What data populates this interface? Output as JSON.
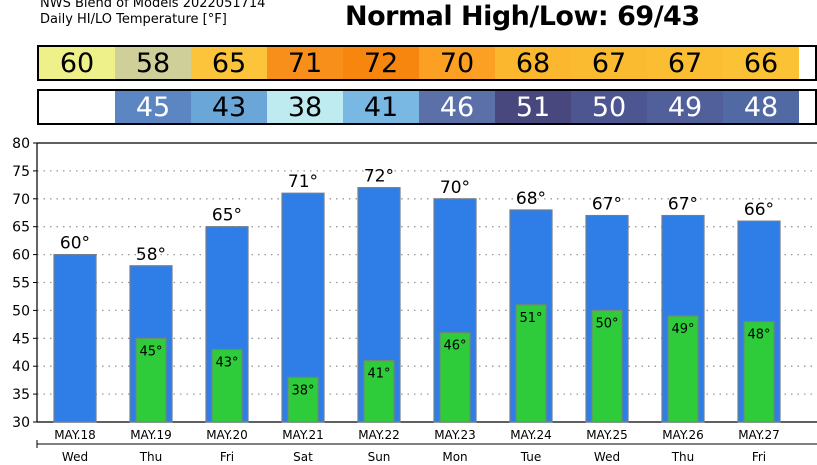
{
  "header": {
    "line1": "NWS Blend of Models 2022051714",
    "line2": "Daily HI/LO Temperature [°F]",
    "normal": "Normal High/Low: 69/43"
  },
  "colors": {
    "bar_high": "#2f7ee8",
    "bar_low": "#2ecc3a",
    "high_strip": [
      "#eef08a",
      "#cfcf9a",
      "#fbc43a",
      "#f78f1a",
      "#f7860e",
      "#fba022",
      "#fbb82e",
      "#fbbb30",
      "#fbbd32",
      "#fbc236"
    ],
    "low_strip": [
      "#ffffff",
      "#5b86c2",
      "#6ba6d9",
      "#bdebf0",
      "#78b8e2",
      "#5b70a9",
      "#48487e",
      "#4e5691",
      "#515f9b",
      "#526aa4"
    ]
  },
  "chart_data": {
    "type": "bar",
    "categories": [
      "MAY.18",
      "MAY.19",
      "MAY.20",
      "MAY.21",
      "MAY.22",
      "MAY.23",
      "MAY.24",
      "MAY.25",
      "MAY.26",
      "MAY.27"
    ],
    "days": [
      "Wed",
      "Thu",
      "Fri",
      "Sat",
      "Sun",
      "Mon",
      "Tue",
      "Wed",
      "Thu",
      "Fri"
    ],
    "series": [
      {
        "values": [
          60,
          58,
          65,
          71,
          72,
          70,
          68,
          67,
          67,
          66
        ]
      },
      {
        "values": [
          null,
          45,
          43,
          38,
          41,
          46,
          51,
          50,
          49,
          48
        ]
      }
    ],
    "ylim": [
      30,
      80
    ],
    "yticks": [
      30,
      35,
      40,
      45,
      50,
      55,
      60,
      65,
      70,
      75,
      80
    ],
    "grid": true
  }
}
